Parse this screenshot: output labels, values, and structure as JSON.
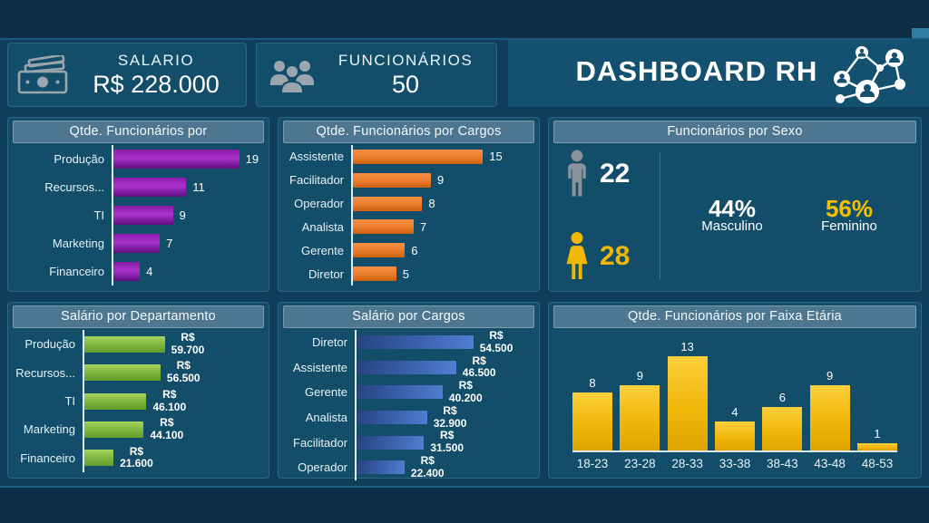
{
  "header": {
    "salary": {
      "label": "SALARIO",
      "value": "R$ 228.000",
      "icon": "money-icon"
    },
    "employees": {
      "label": "FUNCIONÁRIOS",
      "value": "50",
      "icon": "people-group-icon"
    },
    "title": "DASHBOARD RH",
    "title_icon": "people-network-icon"
  },
  "colors": {
    "background": "#0e3e59",
    "band": "#0e2d47",
    "card": "#124e6a",
    "title_strip": "#4d7790",
    "purple": "#9b27bb",
    "orange": "#ed7d31",
    "green": "#7ab648",
    "blue": "#3a67b5",
    "gold": "#f2b705",
    "donut_male": "#ffffff",
    "donut_female": "#f2c105",
    "donut_rest": "#7f99a9",
    "male_icon": "#8b929b",
    "female_icon": "#f2b705"
  },
  "chart_data": [
    {
      "id": "func_por_departamento",
      "type": "bar",
      "orientation": "horizontal",
      "title": "Qtde. Funcionários por",
      "categories": [
        "Produção",
        "Recursos...",
        "TI",
        "Marketing",
        "Financeiro"
      ],
      "values": [
        19,
        11,
        9,
        7,
        4
      ],
      "value_labels": [
        "19",
        "11",
        "9",
        "7",
        "4"
      ],
      "bar_color": "#9b27bb",
      "xlim": [
        0,
        19
      ],
      "grid": false
    },
    {
      "id": "func_por_cargos",
      "type": "bar",
      "orientation": "horizontal",
      "title": "Qtde. Funcionários por Cargos",
      "categories": [
        "Assistente",
        "Facilitador",
        "Operador",
        "Analista",
        "Gerente",
        "Diretor"
      ],
      "values": [
        15,
        9,
        8,
        7,
        6,
        5
      ],
      "value_labels": [
        "15",
        "9",
        "8",
        "7",
        "6",
        "5"
      ],
      "bar_color": "#ed7d31",
      "xlim": [
        0,
        15
      ],
      "grid": false
    },
    {
      "id": "func_por_sexo",
      "type": "pie",
      "title": "Funcionários por Sexo",
      "male_count": "22",
      "female_count": "28",
      "rest_color": "#7f99a9",
      "slices": [
        {
          "label": "Masculino",
          "value": 22,
          "pct": 44,
          "pct_label": "44%",
          "color": "#ffffff",
          "direction": "ccw"
        },
        {
          "label": "Feminino",
          "value": 28,
          "pct": 56,
          "pct_label": "56%",
          "color": "#f2c105",
          "direction": "cw"
        }
      ]
    },
    {
      "id": "salario_por_departamento",
      "type": "bar",
      "orientation": "horizontal",
      "title": "Salário por Departamento",
      "categories": [
        "Produção",
        "Recursos...",
        "TI",
        "Marketing",
        "Financeiro"
      ],
      "values": [
        59700,
        56500,
        46100,
        44100,
        21600
      ],
      "value_prefix": "R$",
      "value_labels": [
        "59.700",
        "56.500",
        "46.100",
        "44.100",
        "21.600"
      ],
      "bar_color": "#7ab648",
      "xlim": [
        0,
        59700
      ],
      "grid": false
    },
    {
      "id": "salario_por_cargos",
      "type": "bar",
      "orientation": "horizontal",
      "title": "Salário por Cargos",
      "categories": [
        "Diretor",
        "Assistente",
        "Gerente",
        "Analista",
        "Facilitador",
        "Operador"
      ],
      "values": [
        54500,
        46500,
        40200,
        32900,
        31500,
        22400
      ],
      "value_prefix": "R$",
      "value_labels": [
        "54.500",
        "46.500",
        "40.200",
        "32.900",
        "31.500",
        "22.400"
      ],
      "bar_color": "#3a67b5",
      "xlim": [
        0,
        54500
      ],
      "grid": false
    },
    {
      "id": "func_por_faixa_etaria",
      "type": "column",
      "orientation": "vertical",
      "title": "Qtde. Funcionários por Faixa Etária",
      "categories": [
        "18-23",
        "23-28",
        "28-33",
        "33-38",
        "38-43",
        "43-48",
        "48-53"
      ],
      "values": [
        8,
        9,
        13,
        4,
        6,
        9,
        1
      ],
      "bar_color": "#f2b705",
      "ylim": [
        0,
        13
      ],
      "grid": false
    }
  ]
}
